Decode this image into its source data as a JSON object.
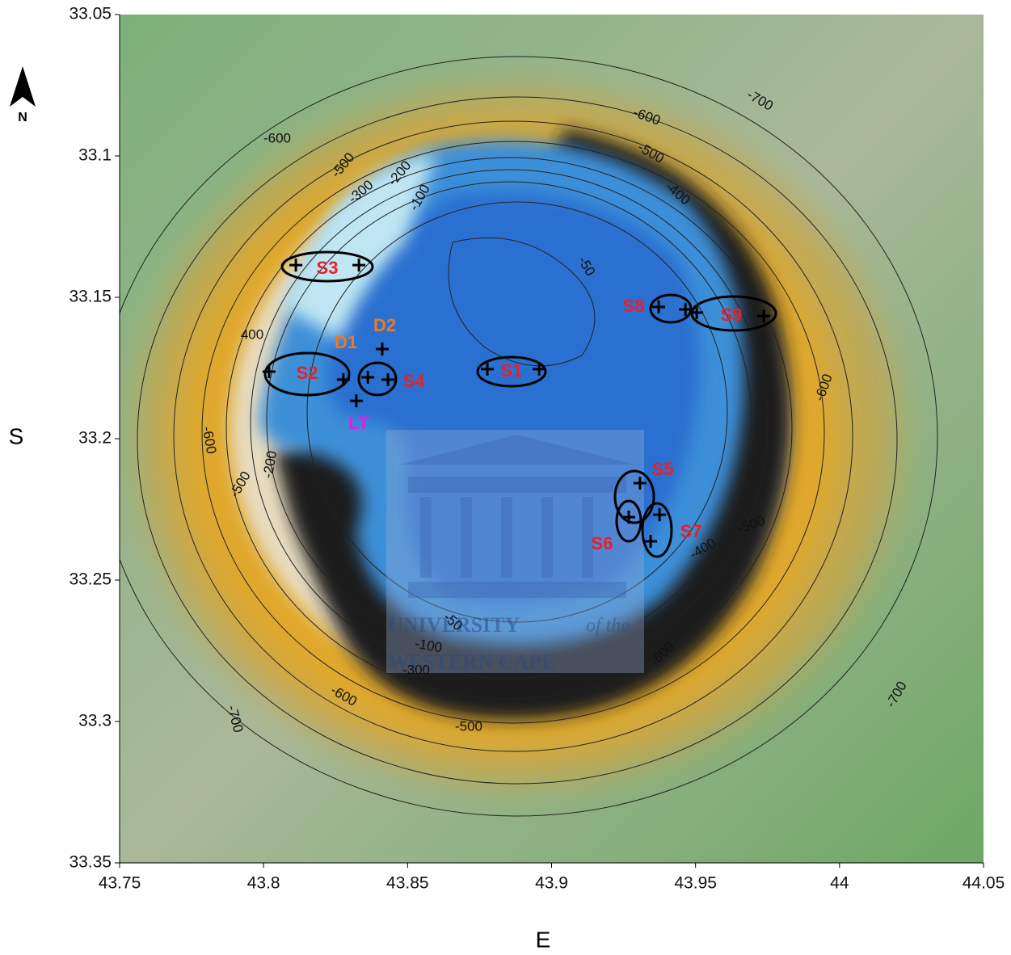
{
  "map": {
    "xlim": [
      43.75,
      44.05
    ],
    "ylim": [
      33.05,
      33.35
    ],
    "xticks": [
      43.75,
      43.8,
      43.85,
      43.9,
      43.95,
      44,
      44.05
    ],
    "yticks": [
      33.05,
      33.1,
      33.15,
      33.2,
      33.25,
      33.3,
      33.35
    ],
    "x_label": "E",
    "y_label": "S",
    "north": "N",
    "contour_labels": [
      "-700",
      "-600",
      "-500",
      "-400",
      "-600",
      "-500",
      "-300",
      "-200",
      "-100",
      "-50",
      "400",
      "-600",
      "-600",
      "-500",
      "-200",
      "-400",
      "-500",
      "-600",
      "-600",
      "-700",
      "-700",
      "-500",
      "-100",
      "-300",
      "-50"
    ],
    "stations": [
      {
        "name": "S3",
        "color": "#e8202a"
      },
      {
        "name": "S2",
        "color": "#e8202a"
      },
      {
        "name": "S4",
        "color": "#e8202a"
      },
      {
        "name": "D1",
        "color": "#f07820"
      },
      {
        "name": "D2",
        "color": "#f07820"
      },
      {
        "name": "LT",
        "color": "#e020e0"
      },
      {
        "name": "S1",
        "color": "#e8202a"
      },
      {
        "name": "S8",
        "color": "#e8202a"
      },
      {
        "name": "S9",
        "color": "#e8202a"
      },
      {
        "name": "S5",
        "color": "#e8202a"
      },
      {
        "name": "S6",
        "color": "#e8202a"
      },
      {
        "name": "S7",
        "color": "#e8202a"
      }
    ],
    "points": [
      {
        "lon": 43.8112,
        "lat": 33.1386
      },
      {
        "lon": 43.8331,
        "lat": 33.1386
      },
      {
        "lon": 43.8019,
        "lat": 33.1763
      },
      {
        "lon": 43.8277,
        "lat": 33.1791
      },
      {
        "lon": 43.8362,
        "lat": 33.1783
      },
      {
        "lon": 43.8432,
        "lat": 33.1791
      },
      {
        "lon": 43.8412,
        "lat": 33.1683
      },
      {
        "lon": 43.8322,
        "lat": 33.1866
      },
      {
        "lon": 43.8777,
        "lat": 33.1754
      },
      {
        "lon": 43.8957,
        "lat": 33.1754
      },
      {
        "lon": 43.9372,
        "lat": 33.1534
      },
      {
        "lon": 43.9465,
        "lat": 33.1543
      },
      {
        "lon": 43.9504,
        "lat": 33.1554
      },
      {
        "lon": 43.9737,
        "lat": 33.1566
      },
      {
        "lon": 43.9307,
        "lat": 33.2157
      },
      {
        "lon": 43.9268,
        "lat": 33.2277
      },
      {
        "lon": 43.9375,
        "lat": 33.2269
      },
      {
        "lon": 43.9344,
        "lat": 33.2363
      }
    ],
    "watermark": [
      "UNIVERSITY",
      "of the",
      "WESTERN CAPE"
    ]
  }
}
